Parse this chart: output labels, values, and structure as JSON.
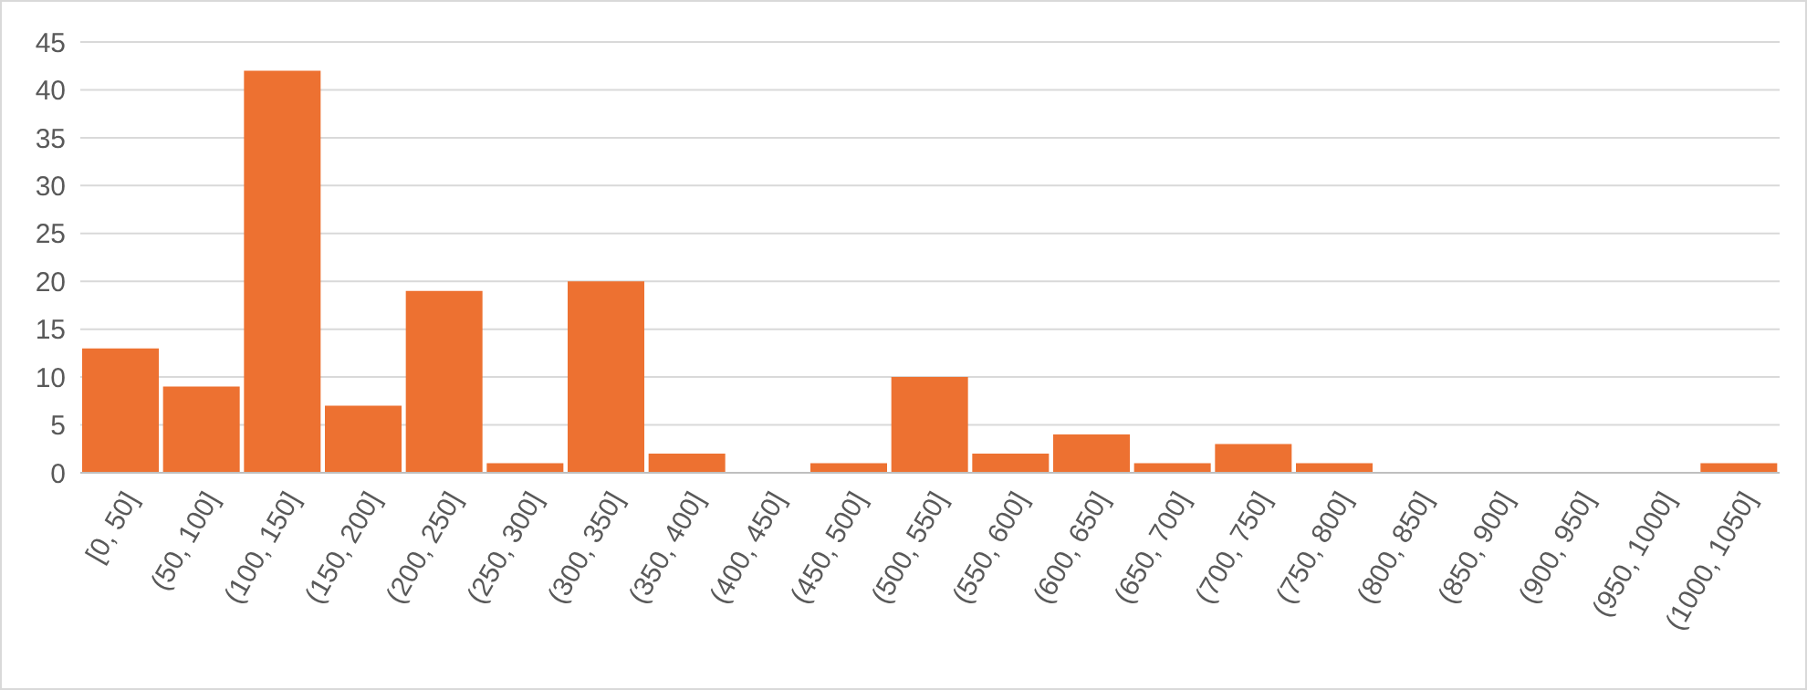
{
  "chart_data": {
    "type": "bar",
    "categories": [
      "[0, 50]",
      "(50, 100]",
      "(100, 150]",
      "(150, 200]",
      "(200, 250]",
      "(250, 300]",
      "(300, 350]",
      "(350, 400]",
      "(400, 450]",
      "(450, 500]",
      "(500, 550]",
      "(550, 600]",
      "(600, 650]",
      "(650, 700]",
      "(700, 750]",
      "(750, 800]",
      "(800, 850]",
      "(850, 900]",
      "(900, 950]",
      "(950, 1000]",
      "(1000, 1050]"
    ],
    "values": [
      13,
      9,
      42,
      7,
      19,
      1,
      20,
      2,
      0,
      1,
      10,
      2,
      4,
      1,
      3,
      1,
      0,
      0,
      0,
      0,
      1
    ],
    "color": "#ed7131",
    "ylim": [
      0,
      45
    ],
    "yticks": [
      0,
      5,
      10,
      15,
      20,
      25,
      30,
      35,
      40,
      45
    ],
    "grid": "y"
  }
}
